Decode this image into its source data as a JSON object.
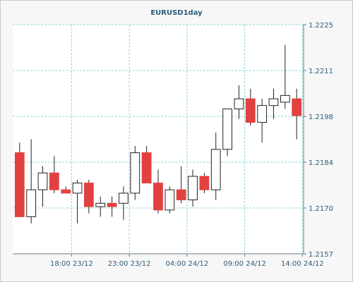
{
  "chart_data": {
    "type": "candlestick",
    "title": "EURUSD1day",
    "xlabel": "",
    "ylabel": "",
    "ylim": [
      1.2157,
      1.2225
    ],
    "y_ticks": [
      "1.2225",
      "1.2211",
      "1.2198",
      "1.2184",
      "1.2170",
      "1.2157"
    ],
    "x_ticks": [
      "18:00 23/12",
      "23:00 23/12",
      "04:00 24/12",
      "09:00 24/12",
      "14:00 24/12"
    ],
    "x_tick_positions": [
      4.5,
      9.5,
      14.5,
      19.5,
      24.5
    ],
    "grid": true,
    "up_color": "#ffffff",
    "down_color": "#e34040",
    "candles": [
      {
        "o": 1.2187,
        "h": 1.219,
        "l": 1.2168,
        "c": 1.2168
      },
      {
        "o": 1.2168,
        "h": 1.2191,
        "l": 1.2166,
        "c": 1.2176
      },
      {
        "o": 1.2176,
        "h": 1.2183,
        "l": 1.2171,
        "c": 1.2181
      },
      {
        "o": 1.2181,
        "h": 1.2186,
        "l": 1.2175,
        "c": 1.2176
      },
      {
        "o": 1.2176,
        "h": 1.2177,
        "l": 1.2175,
        "c": 1.2175
      },
      {
        "o": 1.2175,
        "h": 1.2179,
        "l": 1.2166,
        "c": 1.2178
      },
      {
        "o": 1.2178,
        "h": 1.2179,
        "l": 1.2169,
        "c": 1.2171
      },
      {
        "o": 1.2171,
        "h": 1.2174,
        "l": 1.2168,
        "c": 1.2172
      },
      {
        "o": 1.2172,
        "h": 1.2174,
        "l": 1.2168,
        "c": 1.2171
      },
      {
        "o": 1.2172,
        "h": 1.2177,
        "l": 1.2167,
        "c": 1.2175
      },
      {
        "o": 1.2175,
        "h": 1.2189,
        "l": 1.2173,
        "c": 1.2187
      },
      {
        "o": 1.2187,
        "h": 1.2189,
        "l": 1.2178,
        "c": 1.2178
      },
      {
        "o": 1.2178,
        "h": 1.2182,
        "l": 1.2169,
        "c": 1.217
      },
      {
        "o": 1.217,
        "h": 1.2177,
        "l": 1.2169,
        "c": 1.2176
      },
      {
        "o": 1.2176,
        "h": 1.2183,
        "l": 1.2172,
        "c": 1.2173
      },
      {
        "o": 1.2173,
        "h": 1.2182,
        "l": 1.2171,
        "c": 1.218
      },
      {
        "o": 1.218,
        "h": 1.2181,
        "l": 1.2175,
        "c": 1.2176
      },
      {
        "o": 1.2176,
        "h": 1.2193,
        "l": 1.2173,
        "c": 1.2188
      },
      {
        "o": 1.2188,
        "h": 1.22,
        "l": 1.2186,
        "c": 1.22
      },
      {
        "o": 1.22,
        "h": 1.2207,
        "l": 1.2197,
        "c": 1.2203
      },
      {
        "o": 1.2203,
        "h": 1.2206,
        "l": 1.2195,
        "c": 1.2196
      },
      {
        "o": 1.2196,
        "h": 1.2203,
        "l": 1.219,
        "c": 1.2201
      },
      {
        "o": 1.2201,
        "h": 1.2206,
        "l": 1.2197,
        "c": 1.2203
      },
      {
        "o": 1.2202,
        "h": 1.2219,
        "l": 1.22,
        "c": 1.2204
      },
      {
        "o": 1.2203,
        "h": 1.2206,
        "l": 1.2191,
        "c": 1.2198
      }
    ]
  }
}
